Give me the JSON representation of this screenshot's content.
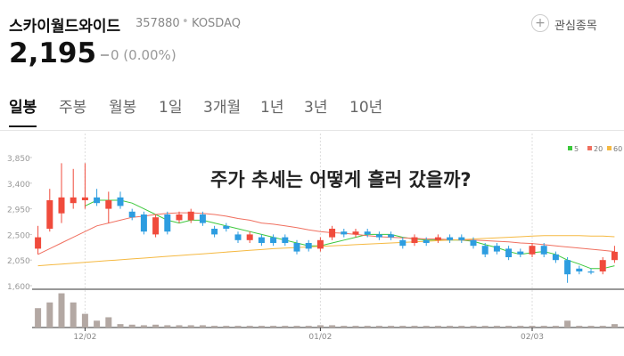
{
  "header": {
    "name": "스카이월드와이드",
    "code": "357880",
    "market": "KOSDAQ",
    "watch": "관심종목"
  },
  "quote": {
    "price": "2,195",
    "change": "0 (0.00%)"
  },
  "tabs": [
    "일봉",
    "주봉",
    "월봉",
    "1일",
    "3개월",
    "1년",
    "3년",
    "10년"
  ],
  "overlay": "주가 추세는 어떻게 흘러 갔을까?",
  "chart_data": [
    {
      "type": "candlestick",
      "categories": [
        null,
        null,
        null,
        null,
        "12/02",
        null,
        null,
        null,
        null,
        null,
        null,
        null,
        null,
        null,
        null,
        null,
        null,
        null,
        null,
        null,
        null,
        null,
        null,
        null,
        "01/02",
        null,
        null,
        null,
        null,
        null,
        null,
        null,
        null,
        null,
        null,
        null,
        null,
        null,
        null,
        null,
        null,
        null,
        "02/03",
        null,
        null,
        null,
        null,
        null,
        null,
        null
      ],
      "open": [
        2250,
        2600,
        2870,
        3050,
        3100,
        3150,
        2950,
        3150,
        2900,
        2850,
        2500,
        2850,
        2750,
        2750,
        2850,
        2600,
        2650,
        2500,
        2400,
        2450,
        2450,
        2450,
        2350,
        2350,
        2250,
        2450,
        2550,
        2500,
        2550,
        2500,
        2500,
        2400,
        2350,
        2400,
        2400,
        2450,
        2450,
        2400,
        2300,
        2300,
        2250,
        2200,
        2150,
        2300,
        2150,
        2050,
        1900,
        1850,
        1850,
        2050
      ],
      "high": [
        2650,
        3300,
        3750,
        3650,
        3750,
        3300,
        3250,
        3250,
        2950,
        2900,
        2850,
        2900,
        2900,
        2950,
        2900,
        2650,
        2700,
        2550,
        2550,
        2500,
        2500,
        2500,
        2400,
        2400,
        2450,
        2650,
        2600,
        2600,
        2600,
        2550,
        2550,
        2450,
        2500,
        2450,
        2500,
        2500,
        2500,
        2450,
        2350,
        2350,
        2300,
        2250,
        2350,
        2350,
        2200,
        2100,
        1950,
        1900,
        2100,
        2300
      ],
      "low": [
        2150,
        2550,
        2700,
        2950,
        2950,
        3000,
        2700,
        2950,
        2750,
        2500,
        2450,
        2500,
        2700,
        2700,
        2650,
        2450,
        2550,
        2350,
        2350,
        2300,
        2300,
        2300,
        2150,
        2200,
        2200,
        2400,
        2450,
        2450,
        2450,
        2400,
        2400,
        2250,
        2300,
        2300,
        2350,
        2350,
        2350,
        2250,
        2100,
        2150,
        2050,
        2100,
        2100,
        2100,
        2000,
        1650,
        1800,
        1800,
        1800,
        2000
      ],
      "close": [
        2450,
        3100,
        3150,
        3150,
        3150,
        3050,
        3100,
        3000,
        2800,
        2550,
        2800,
        2550,
        2850,
        2900,
        2700,
        2500,
        2600,
        2400,
        2500,
        2350,
        2350,
        2350,
        2200,
        2250,
        2400,
        2600,
        2500,
        2550,
        2500,
        2450,
        2450,
        2300,
        2450,
        2350,
        2450,
        2400,
        2400,
        2300,
        2150,
        2200,
        2100,
        2150,
        2300,
        2150,
        2050,
        1800,
        1850,
        1830,
        2050,
        2195
      ],
      "up_color": "#f04b3c",
      "down_color": "#2d9de0",
      "series": [
        {
          "name": "5",
          "color": "#3cc83c",
          "values": [
            null,
            null,
            null,
            null,
            3000,
            3100,
            3100,
            3100,
            3050,
            2950,
            2850,
            2750,
            2700,
            2750,
            2750,
            2700,
            2650,
            2600,
            2550,
            2500,
            2450,
            2400,
            2350,
            2300,
            2300,
            2350,
            2400,
            2450,
            2500,
            2500,
            2500,
            2450,
            2420,
            2400,
            2400,
            2400,
            2400,
            2380,
            2320,
            2270,
            2200,
            2150,
            2180,
            2200,
            2150,
            2050,
            1980,
            1900,
            1900,
            1950
          ]
        },
        {
          "name": "20",
          "color": "#f07060",
          "values": [
            2150,
            2250,
            2350,
            2450,
            2550,
            2650,
            2700,
            2750,
            2800,
            2820,
            2850,
            2870,
            2880,
            2880,
            2870,
            2850,
            2820,
            2780,
            2750,
            2700,
            2680,
            2650,
            2620,
            2580,
            2550,
            2530,
            2520,
            2500,
            2480,
            2460,
            2450,
            2440,
            2430,
            2420,
            2420,
            2410,
            2400,
            2400,
            2390,
            2380,
            2370,
            2350,
            2340,
            2320,
            2300,
            2280,
            2260,
            2240,
            2220,
            2200
          ]
        },
        {
          "name": "60",
          "color": "#f5b942",
          "values": [
            1950,
            1965,
            1980,
            1995,
            2010,
            2025,
            2040,
            2055,
            2070,
            2085,
            2100,
            2115,
            2130,
            2145,
            2160,
            2175,
            2190,
            2205,
            2220,
            2235,
            2250,
            2260,
            2270,
            2280,
            2290,
            2300,
            2310,
            2320,
            2330,
            2340,
            2350,
            2360,
            2370,
            2380,
            2390,
            2400,
            2410,
            2420,
            2430,
            2440,
            2450,
            2460,
            2470,
            2480,
            2480,
            2480,
            2480,
            2470,
            2470,
            2460
          ]
        }
      ],
      "ylim": [
        1600,
        3850
      ],
      "yticks": [
        {
          "value": 3850,
          "label": "3,850"
        },
        {
          "value": 3400,
          "label": "3,400"
        },
        {
          "value": 2950,
          "label": "2,950"
        },
        {
          "value": 2500,
          "label": "2,500"
        },
        {
          "value": 2050,
          "label": "2,050"
        },
        {
          "value": 1600,
          "label": "1,600"
        }
      ],
      "grid": true
    },
    {
      "type": "bar",
      "color": "#b3a8a3",
      "values": [
        170,
        220,
        300,
        220,
        120,
        60,
        90,
        30,
        25,
        20,
        25,
        20,
        20,
        20,
        20,
        15,
        15,
        15,
        15,
        15,
        15,
        15,
        15,
        15,
        20,
        20,
        15,
        15,
        15,
        15,
        15,
        15,
        15,
        15,
        15,
        15,
        15,
        15,
        15,
        15,
        15,
        15,
        15,
        15,
        15,
        60,
        15,
        15,
        15,
        30
      ],
      "ylim": [
        0,
        320
      ]
    }
  ]
}
